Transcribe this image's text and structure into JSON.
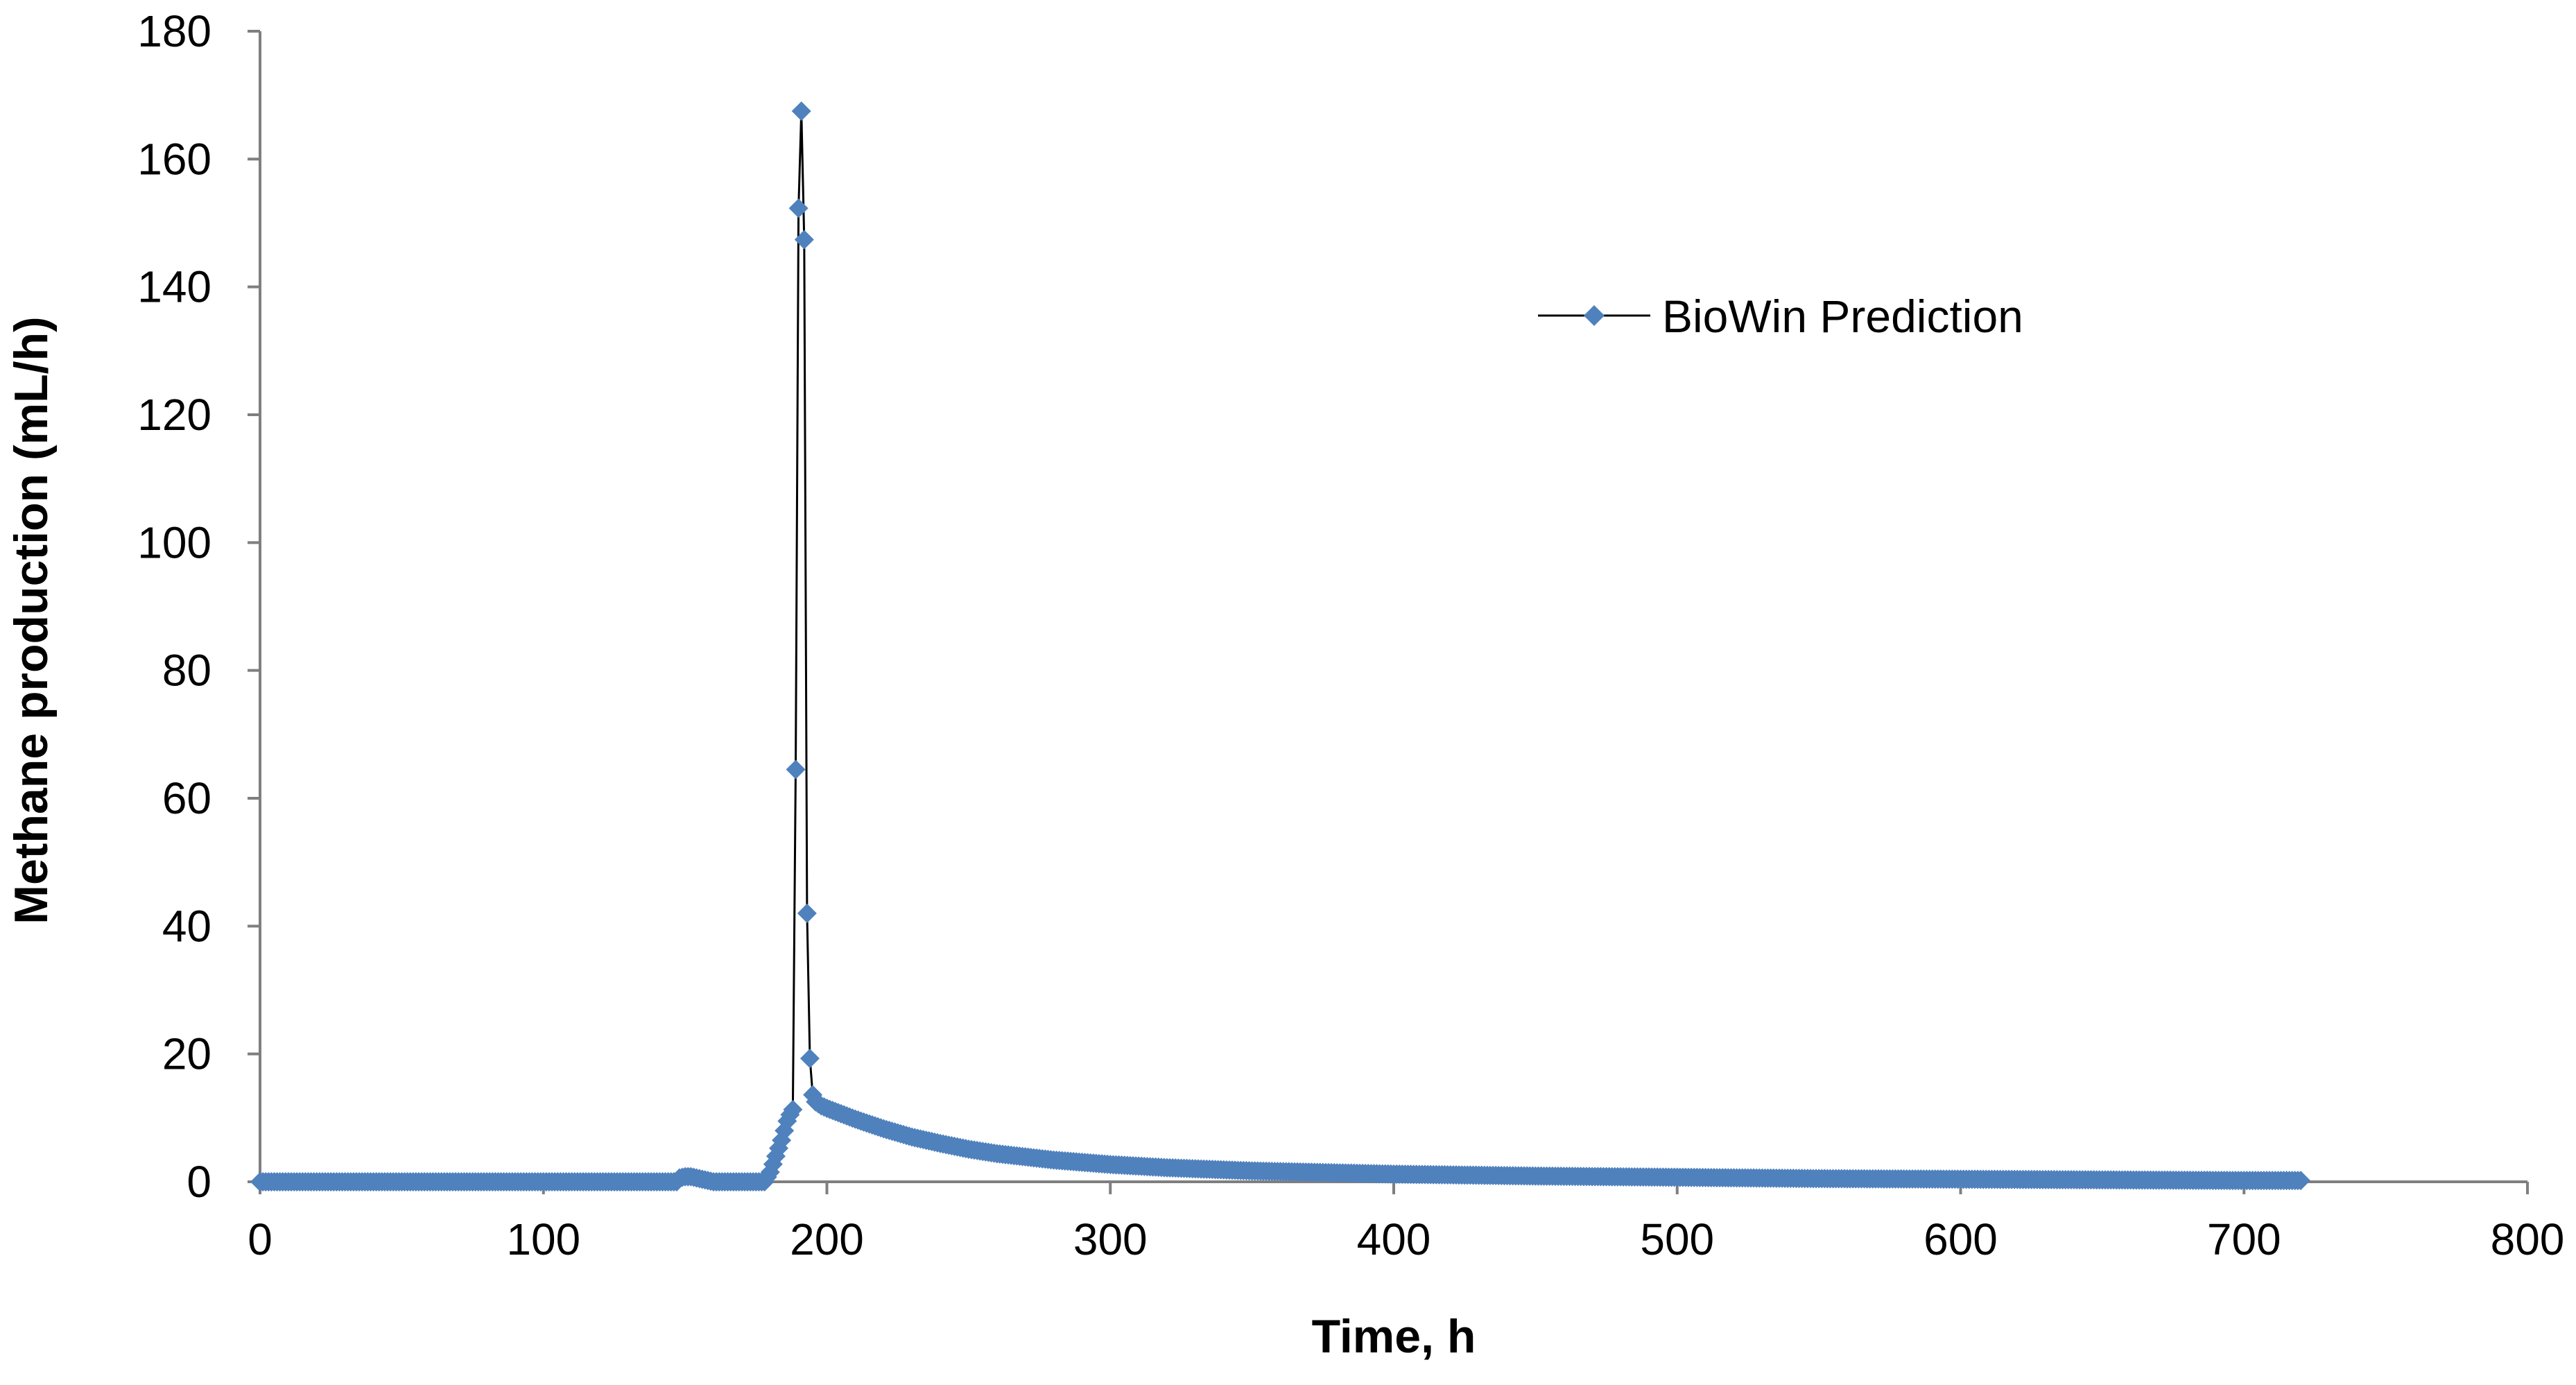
{
  "chart_data": {
    "type": "line",
    "title": "",
    "xlabel": "Time, h",
    "ylabel": "Methane production (mL/h)",
    "xlim": [
      0,
      800
    ],
    "ylim": [
      0,
      180
    ],
    "xticks": [
      0,
      100,
      200,
      300,
      400,
      500,
      600,
      700,
      800
    ],
    "yticks": [
      0,
      20,
      40,
      60,
      80,
      100,
      120,
      140,
      160,
      180
    ],
    "grid": false,
    "legend_position": "top-right",
    "series": [
      {
        "name": "BioWin Prediction",
        "color": "#4f81bd",
        "line_color": "#000000",
        "marker": "diamond",
        "x": [
          0,
          50,
          100,
          147,
          148,
          150,
          152,
          155,
          158,
          160,
          170,
          178,
          180,
          182,
          184,
          185,
          186,
          187,
          188,
          189,
          190,
          191,
          192,
          193,
          194,
          195,
          196,
          197,
          198,
          200,
          210,
          220,
          230,
          240,
          250,
          260,
          280,
          300,
          320,
          350,
          400,
          450,
          500,
          550,
          600,
          650,
          700,
          720
        ],
        "y": [
          0,
          0,
          0,
          0,
          0.6,
          0.8,
          0.8,
          0.5,
          0.2,
          0,
          0,
          0,
          1.5,
          4,
          6.5,
          8,
          9.5,
          10.5,
          11.3,
          64.5,
          152.3,
          167.5,
          147.4,
          42,
          19.3,
          13.6,
          12.5,
          12.2,
          11.9,
          11.5,
          9.8,
          8.3,
          7.0,
          6.0,
          5.1,
          4.4,
          3.4,
          2.7,
          2.2,
          1.7,
          1.2,
          0.9,
          0.7,
          0.5,
          0.4,
          0.3,
          0.2,
          0.2
        ]
      }
    ]
  }
}
